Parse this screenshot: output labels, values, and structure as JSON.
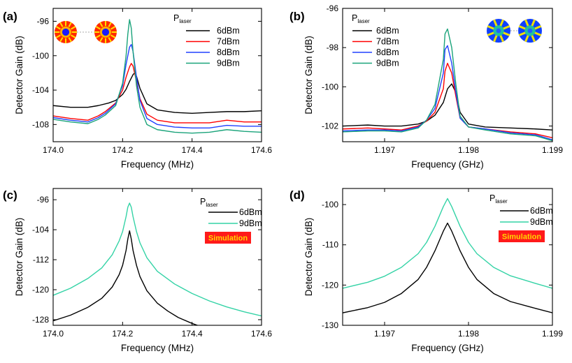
{
  "figure": {
    "description_free": true
  },
  "chart_data": [
    {
      "panel": "(a)",
      "type": "line",
      "xlabel": "Frequency (MHz)",
      "ylabel": "Detector Gain (dB)",
      "xlim": [
        174.0,
        174.6
      ],
      "ylim": [
        -110,
        -94.5
      ],
      "xticks": [
        174.0,
        174.2,
        174.4,
        174.6
      ],
      "xtick_labels": [
        "174.0",
        "174.2",
        "174.4",
        "174.6"
      ],
      "yticks": [
        -96,
        -100,
        -104,
        -108
      ],
      "ytick_labels": [
        "-96",
        "-100",
        "-104",
        "-108"
      ],
      "legend_title": "P",
      "legend_title_sub": "laser",
      "legend_position": "top-right",
      "has_inset": true,
      "inset_kind": "mode-pattern-red-yellow",
      "series": [
        {
          "name": "6dBm",
          "color": "#000000",
          "x": [
            174.0,
            174.05,
            174.1,
            174.13,
            174.16,
            174.18,
            174.2,
            174.21,
            174.22,
            174.23,
            174.235,
            174.24,
            174.25,
            174.27,
            174.3,
            174.35,
            174.4,
            174.45,
            174.5,
            174.55,
            174.6
          ],
          "y": [
            -105.8,
            -106.0,
            -106.0,
            -105.8,
            -105.5,
            -105.2,
            -104.5,
            -103.9,
            -103.0,
            -102.2,
            -102.0,
            -102.4,
            -103.8,
            -105.6,
            -106.3,
            -106.6,
            -106.7,
            -106.6,
            -106.5,
            -106.5,
            -106.4
          ]
        },
        {
          "name": "7dBm",
          "color": "#ff0000",
          "x": [
            174.0,
            174.05,
            174.1,
            174.13,
            174.15,
            174.18,
            174.2,
            174.21,
            174.22,
            174.225,
            174.23,
            174.24,
            174.25,
            174.27,
            174.3,
            174.35,
            174.4,
            174.45,
            174.5,
            174.55,
            174.6
          ],
          "y": [
            -107.0,
            -107.3,
            -107.5,
            -107.0,
            -106.5,
            -105.5,
            -104.0,
            -102.5,
            -101.3,
            -100.9,
            -101.2,
            -103.0,
            -105.0,
            -106.8,
            -107.5,
            -107.8,
            -107.8,
            -107.8,
            -107.5,
            -107.7,
            -107.7
          ]
        },
        {
          "name": "8dBm",
          "color": "#2040ff",
          "x": [
            174.0,
            174.05,
            174.1,
            174.13,
            174.15,
            174.18,
            174.2,
            174.21,
            174.22,
            174.225,
            174.23,
            174.24,
            174.25,
            174.27,
            174.3,
            174.35,
            174.4,
            174.45,
            174.5,
            174.55,
            174.6
          ],
          "y": [
            -107.2,
            -107.5,
            -107.7,
            -107.2,
            -106.7,
            -105.6,
            -103.5,
            -101.0,
            -99.0,
            -98.7,
            -99.5,
            -102.5,
            -105.2,
            -107.3,
            -108.0,
            -108.3,
            -108.4,
            -108.4,
            -108.1,
            -108.2,
            -108.2
          ]
        },
        {
          "name": "9dBm",
          "color": "#1aa37a",
          "x": [
            174.0,
            174.05,
            174.1,
            174.13,
            174.15,
            174.18,
            174.2,
            174.21,
            174.215,
            174.22,
            174.225,
            174.23,
            174.24,
            174.25,
            174.27,
            174.3,
            174.35,
            174.4,
            174.45,
            174.5,
            174.55,
            174.6
          ],
          "y": [
            -107.4,
            -107.7,
            -107.9,
            -107.4,
            -106.9,
            -105.8,
            -103.2,
            -100.0,
            -97.5,
            -95.8,
            -96.8,
            -99.5,
            -103.5,
            -106.0,
            -108.0,
            -108.6,
            -108.9,
            -109.0,
            -108.9,
            -108.6,
            -108.8,
            -108.9
          ]
        }
      ]
    },
    {
      "panel": "(b)",
      "type": "line",
      "xlabel": "Frequency (GHz)",
      "ylabel": "Detector Gain (dB)",
      "xlim": [
        1.1965,
        1.199
      ],
      "ylim": [
        -102.8,
        -96.0
      ],
      "xticks": [
        1.197,
        1.198,
        1.199
      ],
      "xtick_labels": [
        "1.197",
        "1.198",
        "1.199"
      ],
      "yticks": [
        -96,
        -98,
        -100,
        -102
      ],
      "ytick_labels": [
        "-96",
        "-98",
        "-100",
        "-102"
      ],
      "legend_title": "P",
      "legend_title_sub": "laser",
      "legend_position": "top-left",
      "has_inset": true,
      "inset_kind": "mode-pattern-blue-yellow",
      "series": [
        {
          "name": "6dBm",
          "color": "#000000",
          "x": [
            1.1965,
            1.1968,
            1.197,
            1.1972,
            1.1974,
            1.1975,
            1.1976,
            1.1977,
            1.19775,
            1.1978,
            1.19785,
            1.1979,
            1.198,
            1.1982,
            1.1985,
            1.1988,
            1.199
          ],
          "y": [
            -102.0,
            -101.95,
            -102.0,
            -102.0,
            -101.9,
            -101.75,
            -101.45,
            -100.8,
            -100.1,
            -99.85,
            -100.3,
            -101.3,
            -101.9,
            -102.05,
            -102.1,
            -102.15,
            -102.2
          ]
        },
        {
          "name": "7dBm",
          "color": "#ff0000",
          "x": [
            1.1965,
            1.1968,
            1.197,
            1.1972,
            1.1974,
            1.1975,
            1.1976,
            1.1977,
            1.19772,
            1.19775,
            1.1978,
            1.19785,
            1.1979,
            1.198,
            1.1982,
            1.1985,
            1.1988,
            1.199
          ],
          "y": [
            -102.15,
            -102.1,
            -102.15,
            -102.2,
            -102.0,
            -101.75,
            -101.3,
            -100.1,
            -99.2,
            -98.8,
            -99.3,
            -100.5,
            -101.6,
            -102.05,
            -102.15,
            -102.3,
            -102.4,
            -102.6
          ]
        },
        {
          "name": "8dBm",
          "color": "#2040ff",
          "x": [
            1.1965,
            1.1968,
            1.197,
            1.1972,
            1.1974,
            1.1975,
            1.1976,
            1.1977,
            1.19772,
            1.19775,
            1.1978,
            1.19785,
            1.1979,
            1.198,
            1.1982,
            1.1985,
            1.1988,
            1.199
          ],
          "y": [
            -102.25,
            -102.2,
            -102.2,
            -102.25,
            -102.05,
            -101.7,
            -101.1,
            -99.3,
            -98.1,
            -97.9,
            -98.8,
            -100.3,
            -101.6,
            -102.05,
            -102.15,
            -102.35,
            -102.45,
            -102.7
          ]
        },
        {
          "name": "9dBm",
          "color": "#1aa37a",
          "x": [
            1.1965,
            1.1968,
            1.197,
            1.1972,
            1.1974,
            1.1975,
            1.1976,
            1.1977,
            1.19772,
            1.19775,
            1.1978,
            1.19785,
            1.1979,
            1.198,
            1.1982,
            1.1985,
            1.1988,
            1.199
          ],
          "y": [
            -102.3,
            -102.25,
            -102.25,
            -102.3,
            -102.1,
            -101.7,
            -100.9,
            -98.6,
            -97.3,
            -97.05,
            -98.0,
            -99.9,
            -101.5,
            -102.05,
            -102.2,
            -102.4,
            -102.5,
            -102.75
          ]
        }
      ]
    },
    {
      "panel": "(c)",
      "type": "line",
      "xlabel": "Frequency (MHz)",
      "ylabel": "Detector Gain (dB)",
      "xlim": [
        174.0,
        174.6
      ],
      "ylim": [
        -129.5,
        -93
      ],
      "xticks": [
        174.0,
        174.2,
        174.4,
        174.6
      ],
      "xtick_labels": [
        "174.0",
        "174.2",
        "174.4",
        "174.6"
      ],
      "yticks": [
        -96,
        -104,
        -112,
        -120,
        -128
      ],
      "ytick_labels": [
        "-96",
        "-104",
        "-112",
        "-120",
        "-128"
      ],
      "legend_title": "P",
      "legend_title_sub": "laser",
      "legend_position": "top-right",
      "annotation": "Simulation",
      "series": [
        {
          "name": "6dBm",
          "color": "#000000",
          "x": [
            174.0,
            174.05,
            174.1,
            174.14,
            174.17,
            174.19,
            174.2,
            174.21,
            174.215,
            174.22,
            174.225,
            174.23,
            174.24,
            174.25,
            174.27,
            174.3,
            174.33,
            174.36,
            174.4,
            174.43
          ],
          "y": [
            -128.3,
            -126.8,
            -124.7,
            -122.3,
            -119.3,
            -116.0,
            -113.5,
            -109.5,
            -106.5,
            -104.3,
            -106.5,
            -109.5,
            -113.5,
            -116.5,
            -120.3,
            -123.6,
            -125.7,
            -127.4,
            -129.0,
            -130.0
          ]
        },
        {
          "name": "9dBm",
          "color": "#34d3a6",
          "x": [
            174.0,
            174.05,
            174.1,
            174.14,
            174.17,
            174.19,
            174.2,
            174.21,
            174.215,
            174.22,
            174.225,
            174.23,
            174.24,
            174.25,
            174.27,
            174.3,
            174.35,
            174.4,
            174.45,
            174.5,
            174.55,
            174.6
          ],
          "y": [
            -121.5,
            -119.6,
            -117.0,
            -114.2,
            -110.7,
            -107.0,
            -104.5,
            -100.5,
            -98.0,
            -96.9,
            -98.0,
            -100.5,
            -104.5,
            -107.5,
            -111.5,
            -115.1,
            -118.5,
            -121.0,
            -123.0,
            -124.6,
            -125.9,
            -127.0
          ]
        }
      ]
    },
    {
      "panel": "(d)",
      "type": "line",
      "xlabel": "Frequency (GHz)",
      "ylabel": "Detector Gain (dB)",
      "xlim": [
        1.1965,
        1.199
      ],
      "ylim": [
        -130,
        -96
      ],
      "xticks": [
        1.197,
        1.198,
        1.199
      ],
      "xtick_labels": [
        "1.197",
        "1.198",
        "1.199"
      ],
      "yticks": [
        -100,
        -110,
        -120,
        -130
      ],
      "ytick_labels": [
        "-100",
        "-110",
        "-120",
        "-130"
      ],
      "legend_title": "P",
      "legend_title_sub": "laser",
      "legend_position": "top-right",
      "annotation": "Simulation",
      "series": [
        {
          "name": "6dBm",
          "color": "#000000",
          "x": [
            1.1965,
            1.1968,
            1.197,
            1.1972,
            1.1974,
            1.1975,
            1.1976,
            1.1977,
            1.19775,
            1.1978,
            1.1979,
            1.198,
            1.1981,
            1.1983,
            1.1985,
            1.1988,
            1.199
          ],
          "y": [
            -126.9,
            -125.6,
            -124.3,
            -122.1,
            -118.6,
            -115.6,
            -111.5,
            -106.6,
            -104.6,
            -106.6,
            -111.5,
            -115.6,
            -118.6,
            -122.1,
            -124.1,
            -125.8,
            -126.9
          ]
        },
        {
          "name": "9dBm",
          "color": "#34d3a6",
          "x": [
            1.1965,
            1.1968,
            1.197,
            1.1972,
            1.1974,
            1.1975,
            1.1976,
            1.1977,
            1.19775,
            1.1978,
            1.1979,
            1.198,
            1.1981,
            1.1983,
            1.1985,
            1.1988,
            1.199
          ],
          "y": [
            -120.8,
            -119.3,
            -117.8,
            -115.6,
            -112.2,
            -109.4,
            -105.4,
            -100.5,
            -98.5,
            -100.5,
            -105.4,
            -109.4,
            -112.2,
            -115.6,
            -117.7,
            -119.6,
            -120.8
          ]
        }
      ]
    }
  ]
}
